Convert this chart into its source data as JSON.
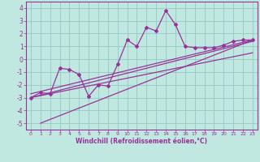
{
  "title": "",
  "xlabel": "Windchill (Refroidissement éolien,°C)",
  "ylabel": "",
  "xlim": [
    -0.5,
    23.5
  ],
  "ylim": [
    -5.5,
    4.5
  ],
  "xticks": [
    0,
    1,
    2,
    3,
    4,
    5,
    6,
    7,
    8,
    9,
    10,
    11,
    12,
    13,
    14,
    15,
    16,
    17,
    18,
    19,
    20,
    21,
    22,
    23
  ],
  "yticks": [
    -5,
    -4,
    -3,
    -2,
    -1,
    0,
    1,
    2,
    3,
    4
  ],
  "bg_color": "#c0e8e0",
  "grid_color": "#99cccc",
  "line_color": "#993399",
  "main_line_x": [
    0,
    1,
    2,
    3,
    4,
    5,
    6,
    7,
    8,
    9,
    10,
    11,
    12,
    13,
    14,
    15,
    16,
    17,
    18,
    19,
    20,
    21,
    22,
    23
  ],
  "main_line_y": [
    -3.0,
    -2.6,
    -2.7,
    -0.7,
    -0.8,
    -1.2,
    -2.9,
    -2.0,
    -2.1,
    -0.4,
    1.5,
    1.0,
    2.5,
    2.2,
    3.8,
    2.7,
    1.0,
    0.9,
    0.9,
    0.9,
    1.1,
    1.4,
    1.5,
    1.5
  ],
  "line2_x": [
    0,
    23
  ],
  "line2_y": [
    -3.0,
    1.4
  ],
  "line3_x": [
    0,
    23
  ],
  "line3_y": [
    -2.7,
    1.5
  ],
  "line4_x": [
    0,
    23
  ],
  "line4_y": [
    -3.0,
    0.5
  ],
  "line5_x": [
    1,
    23
  ],
  "line5_y": [
    -5.0,
    1.5
  ]
}
